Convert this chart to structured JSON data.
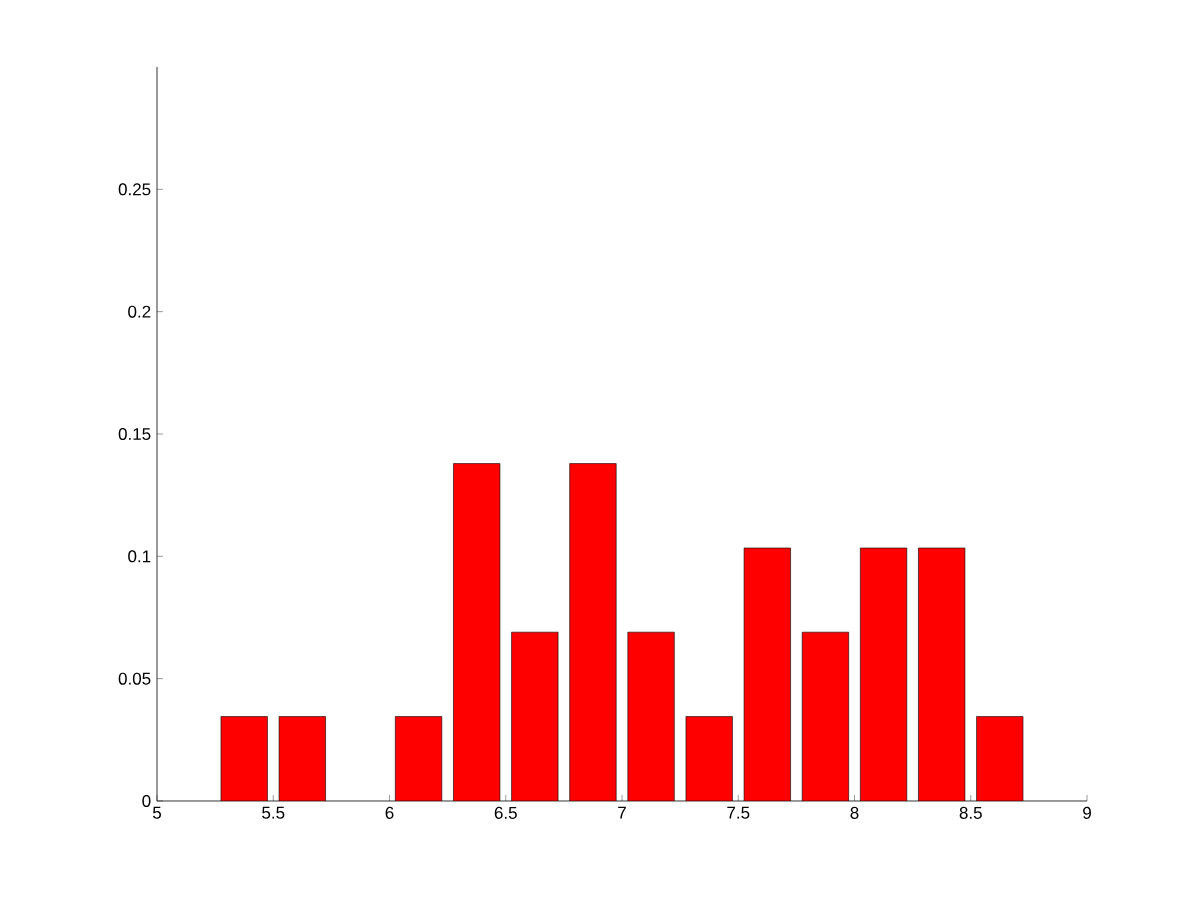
{
  "chart_data": {
    "type": "bar",
    "x": [
      5.375,
      5.625,
      6.125,
      6.375,
      6.625,
      6.875,
      7.125,
      7.375,
      7.625,
      7.875,
      8.125,
      8.375,
      8.625
    ],
    "values": [
      0.0345,
      0.0345,
      0.0345,
      0.1379,
      0.069,
      0.1379,
      0.069,
      0.0345,
      0.1034,
      0.069,
      0.1034,
      0.1034,
      0.0345
    ],
    "color": "#ff0000",
    "xlim": [
      5,
      9
    ],
    "xticks": [
      5,
      5.5,
      6,
      6.5,
      7,
      7.5,
      8,
      8.5,
      9
    ],
    "ylim": [
      0,
      0.3
    ],
    "yticks": [
      0,
      0.05,
      0.1,
      0.15,
      0.2,
      0.25
    ]
  }
}
